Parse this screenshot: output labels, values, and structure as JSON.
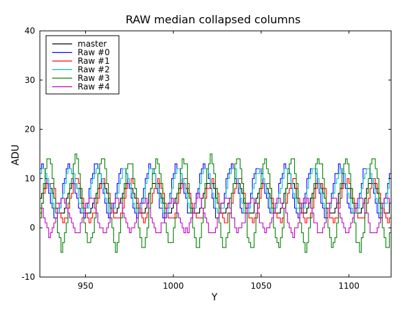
{
  "chart_data": {
    "type": "line",
    "step": true,
    "title": "RAW median collapsed columns",
    "xlabel": "Y",
    "ylabel": "ADU",
    "xlim": [
      924,
      1124
    ],
    "ylim": [
      -10,
      40
    ],
    "xticks": [
      950,
      1000,
      1050,
      1100
    ],
    "yticks": [
      -10,
      0,
      10,
      20,
      30,
      40
    ],
    "grid": false,
    "legend_position": "top-left",
    "series": [
      {
        "name": "master",
        "color": "#000000",
        "offset": 6.0,
        "amp": 3.2,
        "period": 15.4,
        "phase": 0.0,
        "noise": 0.5
      },
      {
        "name": "Raw #0",
        "color": "#0000ff",
        "offset": 7.5,
        "amp": 5.0,
        "period": 15.4,
        "phase": 1.2,
        "noise": 1.2
      },
      {
        "name": "Raw #1",
        "color": "#ff0000",
        "offset": 5.5,
        "amp": 4.0,
        "period": 15.4,
        "phase": -0.6,
        "noise": 1.0
      },
      {
        "name": "Raw #2",
        "color": "#00bfbf",
        "offset": 7.5,
        "amp": 4.5,
        "period": 15.4,
        "phase": 0.9,
        "noise": 1.0
      },
      {
        "name": "Raw #3",
        "color": "#008000",
        "offset": 5.0,
        "amp": 9.0,
        "period": 15.4,
        "phase": -0.3,
        "noise": 1.5
      },
      {
        "name": "Raw #4",
        "color": "#bf00bf",
        "offset": 2.5,
        "amp": 3.5,
        "period": 15.4,
        "phase": 2.6,
        "noise": 1.3
      }
    ]
  }
}
